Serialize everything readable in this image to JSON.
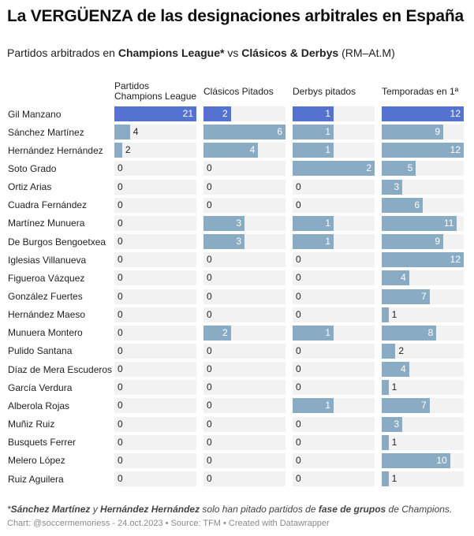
{
  "title": "La VERGÜENZA de las designaciones arbitrales en España",
  "subtitle": {
    "part1": "Partidos arbitrados en ",
    "bold1": "Champions League*",
    "part2": " vs ",
    "bold2": "Clásicos & Derbys",
    "part3": " (RM–At.M)"
  },
  "footnote": {
    "part1": "*",
    "bold1": "Sánchez Martínez",
    "part2": " y ",
    "bold2": "Hernández Hernández",
    "part3": " solo han pitado partidos de ",
    "bold3": "fase de grupos",
    "part4": " de Champions."
  },
  "credit": "Chart: @soccermemoriess - 24.oct.2023 • Source: TFM • Created with Datawrapper",
  "colors": {
    "highlight": "#5572d1",
    "normal": "#8aabc4",
    "track": "#f2f2f2"
  },
  "chart_data": {
    "type": "table",
    "columns": [
      {
        "key": "cl",
        "label_lines": [
          "Partidos",
          "Champions League"
        ],
        "max": 21
      },
      {
        "key": "clasicos",
        "label_lines": [
          "Clásicos Pitados"
        ],
        "max": 6
      },
      {
        "key": "derbys",
        "label_lines": [
          "Derbys pitados"
        ],
        "max": 2
      },
      {
        "key": "temporadas",
        "label_lines": [
          "Temporadas en 1ª"
        ],
        "max": 12
      }
    ],
    "highlighted_row": "Gil Manzano",
    "rows": [
      {
        "name": "Gil Manzano",
        "values": [
          21,
          2,
          1,
          12
        ]
      },
      {
        "name": "Sánchez Martínez",
        "values": [
          4,
          6,
          1,
          9
        ]
      },
      {
        "name": "Hernández Hernández",
        "values": [
          2,
          4,
          1,
          12
        ]
      },
      {
        "name": "Soto Grado",
        "values": [
          0,
          0,
          2,
          5
        ]
      },
      {
        "name": "Ortiz Arias",
        "values": [
          0,
          0,
          0,
          3
        ]
      },
      {
        "name": "Cuadra Fernández",
        "values": [
          0,
          0,
          0,
          6
        ]
      },
      {
        "name": "Martínez Munuera",
        "values": [
          0,
          3,
          1,
          11
        ]
      },
      {
        "name": "De Burgos Bengoetxea",
        "values": [
          0,
          3,
          1,
          9
        ]
      },
      {
        "name": "Iglesias Villanueva",
        "values": [
          0,
          0,
          0,
          12
        ]
      },
      {
        "name": "Figueroa Vázquez",
        "values": [
          0,
          0,
          0,
          4
        ]
      },
      {
        "name": "González Fuertes",
        "values": [
          0,
          0,
          0,
          7
        ]
      },
      {
        "name": "Hernández Maeso",
        "values": [
          0,
          0,
          0,
          1
        ]
      },
      {
        "name": "Munuera Montero",
        "values": [
          0,
          2,
          1,
          8
        ]
      },
      {
        "name": "Pulido Santana",
        "values": [
          0,
          0,
          0,
          2
        ]
      },
      {
        "name": "Díaz de Mera Escuderos",
        "values": [
          0,
          0,
          0,
          4
        ]
      },
      {
        "name": "García Verdura",
        "values": [
          0,
          0,
          0,
          1
        ]
      },
      {
        "name": "Alberola Rojas",
        "values": [
          0,
          0,
          1,
          7
        ]
      },
      {
        "name": "Muñiz Ruiz",
        "values": [
          0,
          0,
          0,
          3
        ]
      },
      {
        "name": "Busquets Ferrer",
        "values": [
          0,
          0,
          0,
          1
        ]
      },
      {
        "name": "Melero López",
        "values": [
          0,
          0,
          0,
          10
        ]
      },
      {
        "name": "Ruiz Aguilera",
        "values": [
          0,
          0,
          0,
          1
        ]
      }
    ]
  }
}
